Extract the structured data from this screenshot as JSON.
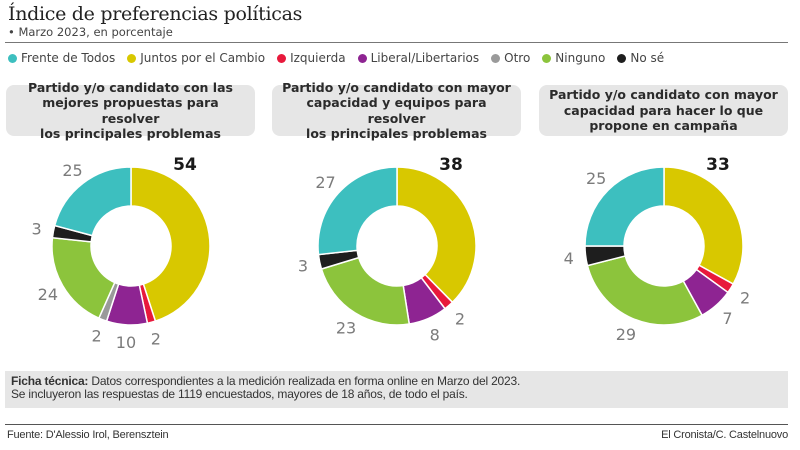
{
  "header": {
    "title": "Índice de preferencias políticas",
    "subtitle": "• Marzo 2023, en porcentaje"
  },
  "legend": [
    {
      "key": "fdt",
      "label": "Frente de Todos",
      "color": "#3dbfbf"
    },
    {
      "key": "jxc",
      "label": "Juntos por el Cambio",
      "color": "#d8c800"
    },
    {
      "key": "izq",
      "label": "Izquierda",
      "color": "#e8193c"
    },
    {
      "key": "lib",
      "label": "Liberal/Libertarios",
      "color": "#8e2492"
    },
    {
      "key": "otro",
      "label": "Otro",
      "color": "#9a9a9a"
    },
    {
      "key": "ninguno",
      "label": "Ninguno",
      "color": "#8cc43c"
    },
    {
      "key": "nose",
      "label": "No sé",
      "color": "#1e1e1e"
    }
  ],
  "chart_data": [
    {
      "type": "pie",
      "donut": true,
      "title": "Partido y/o candidato con las\nmejores propuestas para resolver\nlos principales problemas",
      "categories": [
        "Juntos por el Cambio",
        "Izquierda",
        "Liberal/Libertarios",
        "Otro",
        "Ninguno",
        "No sé",
        "Frente de Todos"
      ],
      "keys": [
        "jxc",
        "izq",
        "lib",
        "otro",
        "ninguno",
        "nose",
        "fdt"
      ],
      "values": [
        54,
        2,
        10,
        2,
        24,
        3,
        25
      ],
      "highlight": "jxc",
      "unit": "%"
    },
    {
      "type": "pie",
      "donut": true,
      "title": "Partido y/o candidato con mayor\ncapacidad y equipos para resolver\nlos principales problemas",
      "categories": [
        "Juntos por el Cambio",
        "Izquierda",
        "Liberal/Libertarios",
        "Ninguno",
        "No sé",
        "Frente de Todos"
      ],
      "keys": [
        "jxc",
        "izq",
        "lib",
        "ninguno",
        "nose",
        "fdt"
      ],
      "values": [
        38,
        2,
        8,
        23,
        3,
        27
      ],
      "highlight": "jxc",
      "unit": "%"
    },
    {
      "type": "pie",
      "donut": true,
      "title": "Partido y/o candidato con mayor\ncapacidad para hacer lo que\npropone en campaña",
      "categories": [
        "Juntos por el Cambio",
        "Izquierda",
        "Liberal/Libertarios",
        "Ninguno",
        "No sé",
        "Frente de Todos"
      ],
      "keys": [
        "jxc",
        "izq",
        "lib",
        "ninguno",
        "nose",
        "fdt"
      ],
      "values": [
        33,
        2,
        7,
        29,
        4,
        25
      ],
      "highlight": "jxc",
      "unit": "%"
    }
  ],
  "ficha": {
    "label": "Ficha técnica:",
    "line1": " Datos correspondientes a la medición realizada en forma online en Marzo del 2023.",
    "line2": "Se incluyeron las respuestas de 1119 encuestados, mayores de 18 años, de todo el país."
  },
  "footer": {
    "source": "Fuente: D'Alessio Irol, Berensztein",
    "credit": "El Cronista/C. Castelnuovo"
  }
}
